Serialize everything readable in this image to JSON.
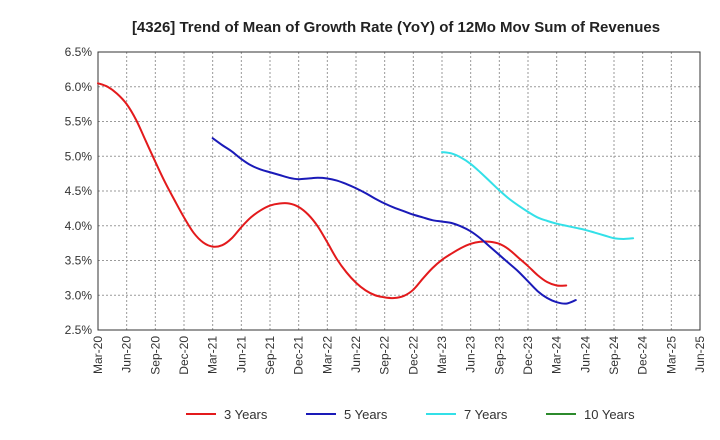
{
  "chart_data": {
    "type": "line",
    "title": "[4326]  Trend of Mean of Growth Rate (YoY) of 12Mo Mov Sum of Revenues",
    "xlabel": "",
    "ylabel": "",
    "ylim": [
      2.5,
      6.5
    ],
    "y_ticks": [
      2.5,
      3.0,
      3.5,
      4.0,
      4.5,
      5.0,
      5.5,
      6.0,
      6.5
    ],
    "y_tick_labels": [
      "2.5%",
      "3.0%",
      "3.5%",
      "4.0%",
      "4.5%",
      "5.0%",
      "5.5%",
      "6.0%",
      "6.5%"
    ],
    "x_tick_labels": [
      "Mar-20",
      "Jun-20",
      "Sep-20",
      "Dec-20",
      "Mar-21",
      "Jun-21",
      "Sep-21",
      "Dec-21",
      "Mar-22",
      "Jun-22",
      "Sep-22",
      "Dec-22",
      "Mar-23",
      "Jun-23",
      "Sep-23",
      "Dec-23",
      "Mar-24",
      "Jun-24",
      "Sep-24",
      "Dec-24",
      "Mar-25",
      "Jun-25"
    ],
    "grid": true,
    "legend_position": "bottom",
    "series": [
      {
        "name": "3 Years",
        "color": "#e31a1c",
        "start_index": 0,
        "values": [
          6.05,
          6.0,
          5.9,
          5.75,
          5.52,
          5.22,
          4.92,
          4.63,
          4.37,
          4.12,
          3.9,
          3.76,
          3.7,
          3.72,
          3.82,
          3.98,
          4.12,
          4.22,
          4.29,
          4.32,
          4.32,
          4.27,
          4.16,
          3.99,
          3.76,
          3.52,
          3.33,
          3.18,
          3.07,
          3.0,
          2.97,
          2.96,
          2.99,
          3.08,
          3.24,
          3.39,
          3.51,
          3.6,
          3.68,
          3.74,
          3.77,
          3.77,
          3.74,
          3.66,
          3.54,
          3.42,
          3.29,
          3.19,
          3.14,
          3.14
        ]
      },
      {
        "name": "5 Years",
        "color": "#1a1ab8",
        "start_index": 12,
        "values": [
          5.26,
          5.16,
          5.07,
          4.96,
          4.87,
          4.81,
          4.77,
          4.73,
          4.69,
          4.67,
          4.68,
          4.69,
          4.68,
          4.65,
          4.6,
          4.54,
          4.47,
          4.39,
          4.32,
          4.26,
          4.21,
          4.16,
          4.12,
          4.08,
          4.06,
          4.04,
          3.99,
          3.92,
          3.82,
          3.7,
          3.58,
          3.46,
          3.34,
          3.2,
          3.06,
          2.96,
          2.9,
          2.88,
          2.93
        ]
      },
      {
        "name": "7 Years",
        "color": "#33e0e8",
        "start_index": 36,
        "values": [
          5.06,
          5.04,
          4.98,
          4.89,
          4.77,
          4.64,
          4.51,
          4.39,
          4.29,
          4.2,
          4.12,
          4.07,
          4.03,
          4.0,
          3.97,
          3.94,
          3.9,
          3.86,
          3.82,
          3.81,
          3.82
        ]
      },
      {
        "name": "10 Years",
        "color": "#2c8a2c",
        "start_index": 0,
        "values": []
      }
    ]
  }
}
